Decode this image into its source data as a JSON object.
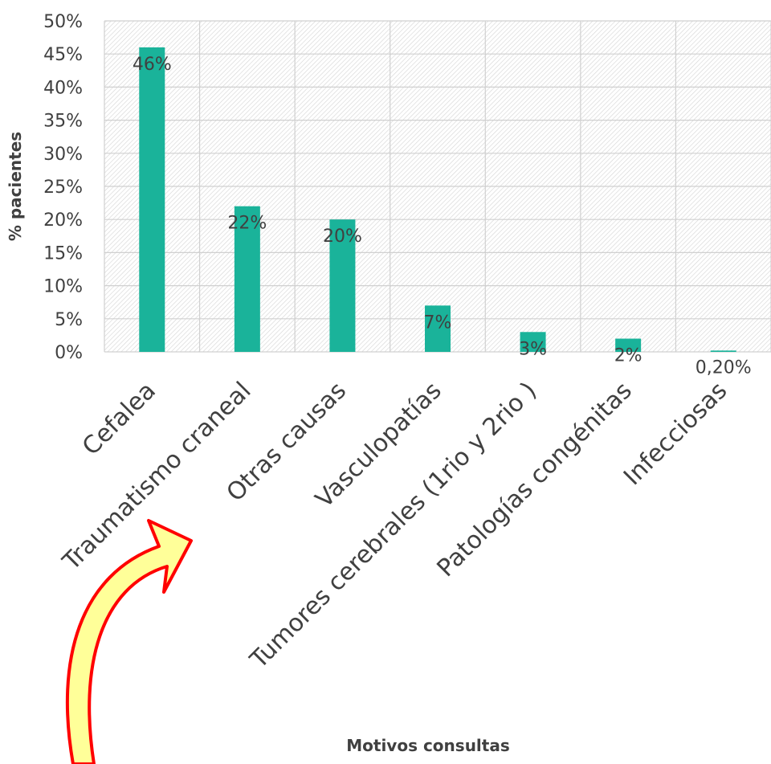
{
  "chart_data": {
    "type": "bar",
    "categories": [
      "Cefalea",
      "Traumatismo craneal",
      "Otras causas",
      "Vasculopatías",
      "Tumores cerebrales (1rio y 2rio )",
      "Patologías congénitas",
      "Infecciosas"
    ],
    "values": [
      46,
      22,
      20,
      7,
      3,
      2,
      0.2
    ],
    "data_labels": [
      "46%",
      "22%",
      "20%",
      "7%",
      "3%",
      "2%",
      "0,20%"
    ],
    "y_ticks": [
      "0%",
      "5%",
      "10%",
      "15%",
      "20%",
      "25%",
      "30%",
      "35%",
      "40%",
      "45%",
      "50%"
    ],
    "ylim": [
      0,
      50
    ],
    "ylabel": "% pacientes",
    "xlabel": "Motivos consultas",
    "grid": true,
    "legend": "none",
    "colors": {
      "bar": "#1ab39a",
      "grid": "#d0d0d0",
      "arrow_fill": "#ffff99",
      "arrow_stroke": "#ff0000"
    }
  }
}
